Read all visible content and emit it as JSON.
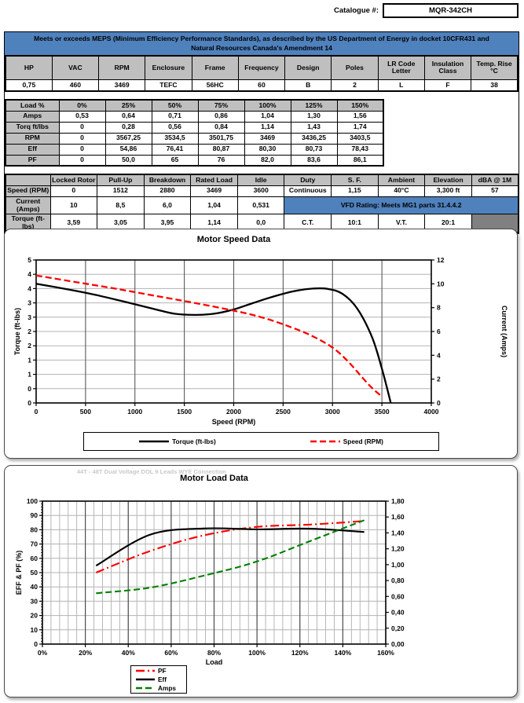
{
  "page": {
    "catalogue_label": "Catalogue #:",
    "catalogue_value": "MQR-342CH",
    "meps_banner": "Meets or exceeds MEPS (Minimum Efficiency Performance Standards), as described by the US Department of Energy in docket 10CFR431 and Natural Resources Canada's Amendment 14"
  },
  "colors": {
    "banner_blue": "#4F81BD",
    "header_gray": "#BFBFBF",
    "empty_cell_gray": "#808080",
    "torque_black": "#000000",
    "current_red": "#FF0000",
    "amps_green": "#008000"
  },
  "spec_table": {
    "headers": [
      "HP",
      "VAC",
      "RPM",
      "Enclosure",
      "Frame",
      "Frequency",
      "Design",
      "Poles",
      "LR Code Letter",
      "Insulation Class",
      "Temp. Rise °C"
    ],
    "values": [
      "0,75",
      "460",
      "3469",
      "TEFC",
      "56HC",
      "60",
      "B",
      "2",
      "L",
      "F",
      "38"
    ]
  },
  "load_table": {
    "rows": [
      {
        "label": "Load %",
        "header": true,
        "values": [
          "0%",
          "25%",
          "50%",
          "75%",
          "100%",
          "125%",
          "150%"
        ]
      },
      {
        "label": "Amps",
        "header": false,
        "values": [
          "0,53",
          "0,64",
          "0,71",
          "0,86",
          "1,04",
          "1,30",
          "1,56"
        ]
      },
      {
        "label": "Torq ft/lbs",
        "header": false,
        "values": [
          "0",
          "0,28",
          "0,56",
          "0,84",
          "1,14",
          "1,43",
          "1,74"
        ]
      },
      {
        "label": "RPM",
        "header": false,
        "values": [
          "0",
          "3567,25",
          "3534,5",
          "3501,75",
          "3469",
          "3436,25",
          "3403,5"
        ]
      },
      {
        "label": "Eff",
        "header": false,
        "values": [
          "0",
          "54,86",
          "76,41",
          "80,87",
          "80,30",
          "80,73",
          "78,43"
        ]
      },
      {
        "label": "PF",
        "header": false,
        "values": [
          "0",
          "50,0",
          "65",
          "76",
          "82,0",
          "83,6",
          "86,1"
        ]
      }
    ]
  },
  "perf_table": {
    "headers": [
      "",
      "Locked Rotor",
      "Pull-Up",
      "Breakdown",
      "Rated Load",
      "Idle",
      "Duty",
      "S. F.",
      "Ambient",
      "Elevation",
      "dBA @ 1M"
    ],
    "speed_row": {
      "label": "Speed (RPM)",
      "values": [
        "0",
        "1512",
        "2880",
        "3469",
        "3600",
        "Continuous",
        "1,15",
        "40°C",
        "3,300 ft",
        "57"
      ]
    },
    "current_row": {
      "label": "Current (Amps)",
      "values": [
        "10",
        "8,5",
        "6,0",
        "1,04",
        "0,531"
      ],
      "vfd_banner": "VFD Rating: Meets MG1 parts 31.4.4.2"
    },
    "torque_row": {
      "label": "Torque (ft-lbs)",
      "values": [
        "3,59",
        "3,05",
        "3,95",
        "1,14",
        "0,0",
        "C.T.",
        "10:1",
        "V.T.",
        "20:1"
      ],
      "last_cell_empty_gray": true
    }
  },
  "chart_data": [
    {
      "type": "line",
      "title": "Motor Speed Data",
      "xlabel": "Speed (RPM)",
      "ylabel_left": "Torque (ft-lbs)",
      "ylabel_right": "Current (Amps)",
      "xlim": [
        0,
        4000
      ],
      "xtick_labels": [
        "0",
        "500",
        "1000",
        "1500",
        "2000",
        "2500",
        "3000",
        "3500",
        "4000"
      ],
      "ylim_left": [
        0,
        5
      ],
      "ytick_left_labels": [
        "5",
        "4",
        "4",
        "3",
        "3",
        "2",
        "2",
        "1",
        "1",
        "0",
        "0"
      ],
      "ylim_right": [
        0,
        12
      ],
      "ytick_right_labels": [
        "12",
        "10",
        "8",
        "6",
        "4",
        "2",
        "0"
      ],
      "grid": true,
      "legend_position": "bottom",
      "series": [
        {
          "name": "Torque (ft-lbs)",
          "color": "#000000",
          "style": "solid",
          "axis": "left",
          "x": [
            0,
            200,
            400,
            600,
            800,
            1000,
            1200,
            1400,
            1600,
            1800,
            2000,
            2200,
            2400,
            2600,
            2800,
            2950,
            3100,
            3250,
            3400,
            3500,
            3590
          ],
          "y": [
            4.17,
            4.05,
            3.92,
            3.78,
            3.62,
            3.45,
            3.28,
            3.12,
            3.08,
            3.12,
            3.27,
            3.5,
            3.72,
            3.9,
            4.0,
            3.99,
            3.82,
            3.3,
            2.3,
            1.2,
            0.0
          ]
        },
        {
          "name": "Speed (RPM)",
          "color": "#FF0000",
          "style": "dashed",
          "axis": "right",
          "x": [
            0,
            400,
            800,
            1200,
            1600,
            2000,
            2300,
            2600,
            2800,
            3000,
            3150,
            3300,
            3400,
            3500
          ],
          "y": [
            10.7,
            10.15,
            9.6,
            9.0,
            8.4,
            7.75,
            7.15,
            6.3,
            5.6,
            4.65,
            3.55,
            2.15,
            1.25,
            0.55
          ]
        }
      ],
      "key_points": {
        "locked_rotor": {
          "rpm": 0,
          "torque": 3.59,
          "amps": 10
        },
        "pull_up": {
          "rpm": 1512,
          "torque": 3.05,
          "amps": 8.5
        },
        "breakdown": {
          "rpm": 2880,
          "torque": 3.95,
          "amps": 6.0
        },
        "rated_load": {
          "rpm": 3469,
          "torque": 1.14,
          "amps": 1.04
        },
        "idle": {
          "rpm": 3600,
          "torque": 0.0,
          "amps": 0.531
        }
      }
    },
    {
      "type": "line",
      "title": "Motor Load Data",
      "watermark": "44T - 48T Dual Voltage DOL 9 Leads WYE Connection",
      "xlabel": "Load",
      "ylabel_left": "EFF & PF (%)",
      "xlim": [
        0,
        160
      ],
      "xtick_labels": [
        "0%",
        "20%",
        "40%",
        "60%",
        "80%",
        "100%",
        "120%",
        "140%",
        "160%"
      ],
      "x_minor_step": 4,
      "ylim_left": [
        0,
        100
      ],
      "ytick_left_labels": [
        "100",
        "90",
        "80",
        "70",
        "60",
        "50",
        "40",
        "30",
        "20",
        "10",
        "0"
      ],
      "ylim_right": [
        0,
        1.8
      ],
      "ytick_right_labels": [
        "1,80",
        "1,60",
        "1,40",
        "1,20",
        "1,00",
        "0,80",
        "0,60",
        "0,40",
        "0,20",
        "0,00"
      ],
      "grid": true,
      "legend_position": "bottom",
      "series": [
        {
          "name": "PF",
          "color": "#FF0000",
          "style": "dashdot",
          "axis": "left",
          "x": [
            25,
            50,
            75,
            100,
            125,
            150
          ],
          "y": [
            50.0,
            65,
            76,
            82.0,
            83.6,
            86.1
          ]
        },
        {
          "name": "Eff",
          "color": "#000000",
          "style": "solid",
          "axis": "left",
          "x": [
            25,
            50,
            75,
            100,
            125,
            150
          ],
          "y": [
            54.86,
            76.41,
            80.87,
            80.3,
            80.73,
            78.43
          ]
        },
        {
          "name": "Amps",
          "color": "#008000",
          "style": "dashed",
          "axis": "right",
          "x": [
            25,
            50,
            75,
            100,
            125,
            150
          ],
          "y": [
            0.64,
            0.71,
            0.86,
            1.04,
            1.3,
            1.56
          ]
        }
      ]
    }
  ]
}
